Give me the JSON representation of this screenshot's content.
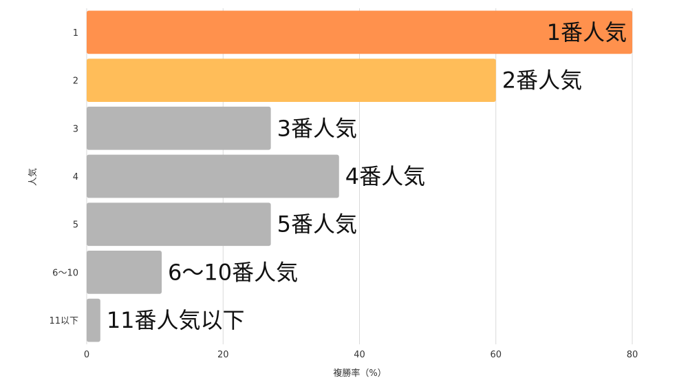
{
  "chart_data": {
    "type": "bar",
    "orientation": "horizontal",
    "title": "",
    "xlabel": "複勝率（%）",
    "ylabel": "人気",
    "xlim": [
      0,
      80
    ],
    "xticks": [
      "0",
      "20",
      "40",
      "60",
      "80"
    ],
    "grid": "vertical",
    "legend": "none",
    "categories": [
      "1",
      "2",
      "3",
      "4",
      "5",
      "6〜10",
      "11以下"
    ],
    "values": [
      80,
      60,
      27,
      37,
      27,
      11,
      2
    ],
    "bar_labels": [
      "1番人気",
      "2番人気",
      "3番人気",
      "4番人気",
      "5番人気",
      "6〜10番人気",
      "11番人気以下"
    ],
    "colors": [
      "#ff914d",
      "#ffbd59",
      "#b5b5b5",
      "#b5b5b5",
      "#b5b5b5",
      "#b5b5b5",
      "#b5b5b5"
    ]
  }
}
